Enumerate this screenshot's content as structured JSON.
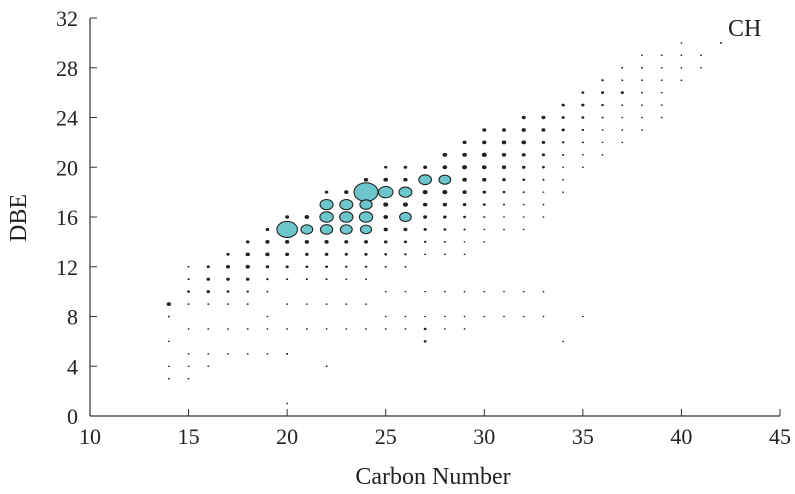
{
  "chart_data": {
    "type": "scatter",
    "title": "",
    "annotation": "CH",
    "xlabel": "Carbon Number",
    "ylabel": "DBE",
    "xlim": [
      10,
      45
    ],
    "ylim": [
      0,
      32
    ],
    "xticks": [
      10,
      15,
      20,
      25,
      30,
      35,
      40,
      45
    ],
    "yticks": [
      0,
      4,
      8,
      12,
      16,
      20,
      24,
      28,
      32
    ],
    "grid": false,
    "legend": "none",
    "colors": {
      "highlight": "#6cc6cc",
      "dot": "#222222",
      "axis": "#333333"
    },
    "size_encoding": "relative abundance",
    "highlighted_points": [
      {
        "x": 24,
        "y": 18,
        "size": 1.0
      },
      {
        "x": 20,
        "y": 15,
        "size": 0.82
      },
      {
        "x": 25,
        "y": 18,
        "size": 0.5
      },
      {
        "x": 26,
        "y": 18,
        "size": 0.42
      },
      {
        "x": 27,
        "y": 19,
        "size": 0.4
      },
      {
        "x": 28,
        "y": 19,
        "size": 0.35
      },
      {
        "x": 22,
        "y": 17,
        "size": 0.42
      },
      {
        "x": 23,
        "y": 17,
        "size": 0.42
      },
      {
        "x": 24,
        "y": 17,
        "size": 0.38
      },
      {
        "x": 22,
        "y": 16,
        "size": 0.44
      },
      {
        "x": 23,
        "y": 16,
        "size": 0.44
      },
      {
        "x": 24,
        "y": 16,
        "size": 0.44
      },
      {
        "x": 26,
        "y": 16,
        "size": 0.35
      },
      {
        "x": 21,
        "y": 15,
        "size": 0.36
      },
      {
        "x": 22,
        "y": 15,
        "size": 0.38
      },
      {
        "x": 23,
        "y": 15,
        "size": 0.36
      },
      {
        "x": 24,
        "y": 15,
        "size": 0.32
      }
    ],
    "points": [
      {
        "x": 14,
        "y": 9,
        "size": 0.18
      },
      {
        "x": 14,
        "y": 8,
        "size": 0.05
      },
      {
        "x": 14,
        "y": 6,
        "size": 0.04
      },
      {
        "x": 14,
        "y": 4,
        "size": 0.04
      },
      {
        "x": 14,
        "y": 3,
        "size": 0.04
      },
      {
        "x": 15,
        "y": 12,
        "size": 0.05
      },
      {
        "x": 15,
        "y": 11,
        "size": 0.06
      },
      {
        "x": 15,
        "y": 10,
        "size": 0.1
      },
      {
        "x": 15,
        "y": 9,
        "size": 0.05
      },
      {
        "x": 15,
        "y": 7,
        "size": 0.04
      },
      {
        "x": 15,
        "y": 5,
        "size": 0.04
      },
      {
        "x": 15,
        "y": 4,
        "size": 0.04
      },
      {
        "x": 15,
        "y": 3,
        "size": 0.04
      },
      {
        "x": 16,
        "y": 12,
        "size": 0.12
      },
      {
        "x": 16,
        "y": 11,
        "size": 0.14
      },
      {
        "x": 16,
        "y": 10,
        "size": 0.14
      },
      {
        "x": 16,
        "y": 9,
        "size": 0.05
      },
      {
        "x": 16,
        "y": 7,
        "size": 0.04
      },
      {
        "x": 16,
        "y": 5,
        "size": 0.04
      },
      {
        "x": 16,
        "y": 4,
        "size": 0.04
      },
      {
        "x": 17,
        "y": 13,
        "size": 0.12
      },
      {
        "x": 17,
        "y": 12,
        "size": 0.16
      },
      {
        "x": 17,
        "y": 11,
        "size": 0.14
      },
      {
        "x": 17,
        "y": 10,
        "size": 0.1
      },
      {
        "x": 17,
        "y": 9,
        "size": 0.05
      },
      {
        "x": 17,
        "y": 7,
        "size": 0.04
      },
      {
        "x": 17,
        "y": 5,
        "size": 0.04
      },
      {
        "x": 18,
        "y": 14,
        "size": 0.14
      },
      {
        "x": 18,
        "y": 13,
        "size": 0.18
      },
      {
        "x": 18,
        "y": 12,
        "size": 0.18
      },
      {
        "x": 18,
        "y": 11,
        "size": 0.14
      },
      {
        "x": 18,
        "y": 10,
        "size": 0.08
      },
      {
        "x": 18,
        "y": 9,
        "size": 0.05
      },
      {
        "x": 18,
        "y": 7,
        "size": 0.04
      },
      {
        "x": 18,
        "y": 5,
        "size": 0.04
      },
      {
        "x": 19,
        "y": 15,
        "size": 0.14
      },
      {
        "x": 19,
        "y": 14,
        "size": 0.18
      },
      {
        "x": 19,
        "y": 13,
        "size": 0.18
      },
      {
        "x": 19,
        "y": 12,
        "size": 0.14
      },
      {
        "x": 19,
        "y": 11,
        "size": 0.08
      },
      {
        "x": 19,
        "y": 10,
        "size": 0.05
      },
      {
        "x": 19,
        "y": 8,
        "size": 0.04
      },
      {
        "x": 19,
        "y": 7,
        "size": 0.04
      },
      {
        "x": 19,
        "y": 5,
        "size": 0.04
      },
      {
        "x": 20,
        "y": 16,
        "size": 0.16
      },
      {
        "x": 20,
        "y": 14,
        "size": 0.18
      },
      {
        "x": 20,
        "y": 13,
        "size": 0.16
      },
      {
        "x": 20,
        "y": 12,
        "size": 0.12
      },
      {
        "x": 20,
        "y": 11,
        "size": 0.06
      },
      {
        "x": 20,
        "y": 9,
        "size": 0.04
      },
      {
        "x": 20,
        "y": 7,
        "size": 0.04
      },
      {
        "x": 20,
        "y": 5,
        "size": 0.06
      },
      {
        "x": 20,
        "y": 1,
        "size": 0.04
      },
      {
        "x": 21,
        "y": 16,
        "size": 0.2
      },
      {
        "x": 21,
        "y": 14,
        "size": 0.18
      },
      {
        "x": 21,
        "y": 13,
        "size": 0.14
      },
      {
        "x": 21,
        "y": 12,
        "size": 0.1
      },
      {
        "x": 21,
        "y": 11,
        "size": 0.06
      },
      {
        "x": 21,
        "y": 9,
        "size": 0.04
      },
      {
        "x": 21,
        "y": 7,
        "size": 0.04
      },
      {
        "x": 22,
        "y": 18,
        "size": 0.14
      },
      {
        "x": 22,
        "y": 14,
        "size": 0.18
      },
      {
        "x": 22,
        "y": 13,
        "size": 0.14
      },
      {
        "x": 22,
        "y": 12,
        "size": 0.1
      },
      {
        "x": 22,
        "y": 11,
        "size": 0.06
      },
      {
        "x": 22,
        "y": 9,
        "size": 0.04
      },
      {
        "x": 22,
        "y": 7,
        "size": 0.04
      },
      {
        "x": 22,
        "y": 4,
        "size": 0.05
      },
      {
        "x": 23,
        "y": 18,
        "size": 0.18
      },
      {
        "x": 23,
        "y": 14,
        "size": 0.16
      },
      {
        "x": 23,
        "y": 13,
        "size": 0.12
      },
      {
        "x": 23,
        "y": 12,
        "size": 0.08
      },
      {
        "x": 23,
        "y": 11,
        "size": 0.05
      },
      {
        "x": 23,
        "y": 9,
        "size": 0.04
      },
      {
        "x": 23,
        "y": 7,
        "size": 0.04
      },
      {
        "x": 24,
        "y": 19,
        "size": 0.18
      },
      {
        "x": 24,
        "y": 14,
        "size": 0.16
      },
      {
        "x": 24,
        "y": 13,
        "size": 0.12
      },
      {
        "x": 24,
        "y": 12,
        "size": 0.08
      },
      {
        "x": 24,
        "y": 11,
        "size": 0.05
      },
      {
        "x": 24,
        "y": 9,
        "size": 0.04
      },
      {
        "x": 24,
        "y": 7,
        "size": 0.04
      },
      {
        "x": 25,
        "y": 20,
        "size": 0.12
      },
      {
        "x": 25,
        "y": 19,
        "size": 0.2
      },
      {
        "x": 25,
        "y": 17,
        "size": 0.22
      },
      {
        "x": 25,
        "y": 16,
        "size": 0.2
      },
      {
        "x": 25,
        "y": 15,
        "size": 0.18
      },
      {
        "x": 25,
        "y": 14,
        "size": 0.14
      },
      {
        "x": 25,
        "y": 13,
        "size": 0.1
      },
      {
        "x": 25,
        "y": 12,
        "size": 0.06
      },
      {
        "x": 25,
        "y": 10,
        "size": 0.04
      },
      {
        "x": 25,
        "y": 8,
        "size": 0.04
      },
      {
        "x": 25,
        "y": 7,
        "size": 0.04
      },
      {
        "x": 26,
        "y": 20,
        "size": 0.14
      },
      {
        "x": 26,
        "y": 19,
        "size": 0.18
      },
      {
        "x": 26,
        "y": 17,
        "size": 0.22
      },
      {
        "x": 26,
        "y": 15,
        "size": 0.16
      },
      {
        "x": 26,
        "y": 14,
        "size": 0.12
      },
      {
        "x": 26,
        "y": 13,
        "size": 0.08
      },
      {
        "x": 26,
        "y": 12,
        "size": 0.05
      },
      {
        "x": 26,
        "y": 10,
        "size": 0.04
      },
      {
        "x": 26,
        "y": 8,
        "size": 0.04
      },
      {
        "x": 26,
        "y": 7,
        "size": 0.04
      },
      {
        "x": 27,
        "y": 20,
        "size": 0.16
      },
      {
        "x": 27,
        "y": 18,
        "size": 0.22
      },
      {
        "x": 27,
        "y": 17,
        "size": 0.18
      },
      {
        "x": 27,
        "y": 16,
        "size": 0.16
      },
      {
        "x": 27,
        "y": 15,
        "size": 0.12
      },
      {
        "x": 27,
        "y": 14,
        "size": 0.08
      },
      {
        "x": 27,
        "y": 13,
        "size": 0.05
      },
      {
        "x": 27,
        "y": 10,
        "size": 0.04
      },
      {
        "x": 27,
        "y": 8,
        "size": 0.04
      },
      {
        "x": 27,
        "y": 7,
        "size": 0.1
      },
      {
        "x": 27,
        "y": 6,
        "size": 0.1
      },
      {
        "x": 28,
        "y": 21,
        "size": 0.2
      },
      {
        "x": 28,
        "y": 20,
        "size": 0.2
      },
      {
        "x": 28,
        "y": 18,
        "size": 0.22
      },
      {
        "x": 28,
        "y": 17,
        "size": 0.18
      },
      {
        "x": 28,
        "y": 16,
        "size": 0.14
      },
      {
        "x": 28,
        "y": 15,
        "size": 0.1
      },
      {
        "x": 28,
        "y": 14,
        "size": 0.06
      },
      {
        "x": 28,
        "y": 13,
        "size": 0.04
      },
      {
        "x": 28,
        "y": 10,
        "size": 0.04
      },
      {
        "x": 28,
        "y": 8,
        "size": 0.04
      },
      {
        "x": 28,
        "y": 7,
        "size": 0.04
      },
      {
        "x": 29,
        "y": 22,
        "size": 0.16
      },
      {
        "x": 29,
        "y": 21,
        "size": 0.2
      },
      {
        "x": 29,
        "y": 20,
        "size": 0.22
      },
      {
        "x": 29,
        "y": 19,
        "size": 0.2
      },
      {
        "x": 29,
        "y": 18,
        "size": 0.18
      },
      {
        "x": 29,
        "y": 17,
        "size": 0.14
      },
      {
        "x": 29,
        "y": 16,
        "size": 0.1
      },
      {
        "x": 29,
        "y": 15,
        "size": 0.06
      },
      {
        "x": 29,
        "y": 14,
        "size": 0.04
      },
      {
        "x": 29,
        "y": 13,
        "size": 0.04
      },
      {
        "x": 29,
        "y": 10,
        "size": 0.04
      },
      {
        "x": 29,
        "y": 8,
        "size": 0.04
      },
      {
        "x": 29,
        "y": 7,
        "size": 0.04
      },
      {
        "x": 30,
        "y": 23,
        "size": 0.16
      },
      {
        "x": 30,
        "y": 22,
        "size": 0.18
      },
      {
        "x": 30,
        "y": 21,
        "size": 0.22
      },
      {
        "x": 30,
        "y": 20,
        "size": 0.2
      },
      {
        "x": 30,
        "y": 19,
        "size": 0.18
      },
      {
        "x": 30,
        "y": 18,
        "size": 0.14
      },
      {
        "x": 30,
        "y": 17,
        "size": 0.1
      },
      {
        "x": 30,
        "y": 16,
        "size": 0.06
      },
      {
        "x": 30,
        "y": 15,
        "size": 0.04
      },
      {
        "x": 30,
        "y": 14,
        "size": 0.04
      },
      {
        "x": 30,
        "y": 10,
        "size": 0.04
      },
      {
        "x": 30,
        "y": 8,
        "size": 0.04
      },
      {
        "x": 31,
        "y": 23,
        "size": 0.16
      },
      {
        "x": 31,
        "y": 22,
        "size": 0.2
      },
      {
        "x": 31,
        "y": 21,
        "size": 0.18
      },
      {
        "x": 31,
        "y": 20,
        "size": 0.18
      },
      {
        "x": 31,
        "y": 19,
        "size": 0.14
      },
      {
        "x": 31,
        "y": 18,
        "size": 0.1
      },
      {
        "x": 31,
        "y": 17,
        "size": 0.06
      },
      {
        "x": 31,
        "y": 16,
        "size": 0.04
      },
      {
        "x": 31,
        "y": 15,
        "size": 0.04
      },
      {
        "x": 31,
        "y": 10,
        "size": 0.04
      },
      {
        "x": 31,
        "y": 8,
        "size": 0.04
      },
      {
        "x": 32,
        "y": 24,
        "size": 0.16
      },
      {
        "x": 32,
        "y": 23,
        "size": 0.18
      },
      {
        "x": 32,
        "y": 22,
        "size": 0.2
      },
      {
        "x": 32,
        "y": 21,
        "size": 0.16
      },
      {
        "x": 32,
        "y": 20,
        "size": 0.14
      },
      {
        "x": 32,
        "y": 19,
        "size": 0.1
      },
      {
        "x": 32,
        "y": 18,
        "size": 0.06
      },
      {
        "x": 32,
        "y": 17,
        "size": 0.04
      },
      {
        "x": 32,
        "y": 16,
        "size": 0.04
      },
      {
        "x": 32,
        "y": 15,
        "size": 0.04
      },
      {
        "x": 32,
        "y": 10,
        "size": 0.04
      },
      {
        "x": 32,
        "y": 8,
        "size": 0.04
      },
      {
        "x": 33,
        "y": 24,
        "size": 0.16
      },
      {
        "x": 33,
        "y": 23,
        "size": 0.16
      },
      {
        "x": 33,
        "y": 22,
        "size": 0.14
      },
      {
        "x": 33,
        "y": 21,
        "size": 0.12
      },
      {
        "x": 33,
        "y": 20,
        "size": 0.1
      },
      {
        "x": 33,
        "y": 19,
        "size": 0.06
      },
      {
        "x": 33,
        "y": 18,
        "size": 0.04
      },
      {
        "x": 33,
        "y": 17,
        "size": 0.04
      },
      {
        "x": 33,
        "y": 16,
        "size": 0.04
      },
      {
        "x": 33,
        "y": 10,
        "size": 0.04
      },
      {
        "x": 33,
        "y": 8,
        "size": 0.04
      },
      {
        "x": 34,
        "y": 25,
        "size": 0.12
      },
      {
        "x": 34,
        "y": 24,
        "size": 0.12
      },
      {
        "x": 34,
        "y": 23,
        "size": 0.12
      },
      {
        "x": 34,
        "y": 22,
        "size": 0.08
      },
      {
        "x": 34,
        "y": 21,
        "size": 0.06
      },
      {
        "x": 34,
        "y": 20,
        "size": 0.04
      },
      {
        "x": 34,
        "y": 19,
        "size": 0.04
      },
      {
        "x": 34,
        "y": 18,
        "size": 0.04
      },
      {
        "x": 34,
        "y": 6,
        "size": 0.04
      },
      {
        "x": 35,
        "y": 26,
        "size": 0.1
      },
      {
        "x": 35,
        "y": 25,
        "size": 0.12
      },
      {
        "x": 35,
        "y": 24,
        "size": 0.1
      },
      {
        "x": 35,
        "y": 23,
        "size": 0.08
      },
      {
        "x": 35,
        "y": 22,
        "size": 0.06
      },
      {
        "x": 35,
        "y": 21,
        "size": 0.04
      },
      {
        "x": 35,
        "y": 20,
        "size": 0.04
      },
      {
        "x": 35,
        "y": 8,
        "size": 0.04
      },
      {
        "x": 36,
        "y": 27,
        "size": 0.08
      },
      {
        "x": 36,
        "y": 26,
        "size": 0.12
      },
      {
        "x": 36,
        "y": 25,
        "size": 0.08
      },
      {
        "x": 36,
        "y": 24,
        "size": 0.06
      },
      {
        "x": 36,
        "y": 23,
        "size": 0.04
      },
      {
        "x": 36,
        "y": 22,
        "size": 0.04
      },
      {
        "x": 36,
        "y": 21,
        "size": 0.04
      },
      {
        "x": 37,
        "y": 28,
        "size": 0.05
      },
      {
        "x": 37,
        "y": 27,
        "size": 0.05
      },
      {
        "x": 37,
        "y": 26,
        "size": 0.12
      },
      {
        "x": 37,
        "y": 25,
        "size": 0.05
      },
      {
        "x": 37,
        "y": 24,
        "size": 0.04
      },
      {
        "x": 37,
        "y": 23,
        "size": 0.04
      },
      {
        "x": 37,
        "y": 22,
        "size": 0.04
      },
      {
        "x": 38,
        "y": 29,
        "size": 0.04
      },
      {
        "x": 38,
        "y": 28,
        "size": 0.05
      },
      {
        "x": 38,
        "y": 27,
        "size": 0.05
      },
      {
        "x": 38,
        "y": 26,
        "size": 0.05
      },
      {
        "x": 38,
        "y": 25,
        "size": 0.04
      },
      {
        "x": 38,
        "y": 24,
        "size": 0.04
      },
      {
        "x": 38,
        "y": 23,
        "size": 0.04
      },
      {
        "x": 39,
        "y": 29,
        "size": 0.04
      },
      {
        "x": 39,
        "y": 28,
        "size": 0.04
      },
      {
        "x": 39,
        "y": 27,
        "size": 0.04
      },
      {
        "x": 39,
        "y": 26,
        "size": 0.04
      },
      {
        "x": 39,
        "y": 25,
        "size": 0.04
      },
      {
        "x": 39,
        "y": 24,
        "size": 0.04
      },
      {
        "x": 40,
        "y": 30,
        "size": 0.04
      },
      {
        "x": 40,
        "y": 29,
        "size": 0.04
      },
      {
        "x": 40,
        "y": 28,
        "size": 0.04
      },
      {
        "x": 40,
        "y": 27,
        "size": 0.04
      },
      {
        "x": 41,
        "y": 29,
        "size": 0.04
      },
      {
        "x": 41,
        "y": 28,
        "size": 0.04
      },
      {
        "x": 42,
        "y": 30,
        "size": 0.06
      }
    ]
  }
}
